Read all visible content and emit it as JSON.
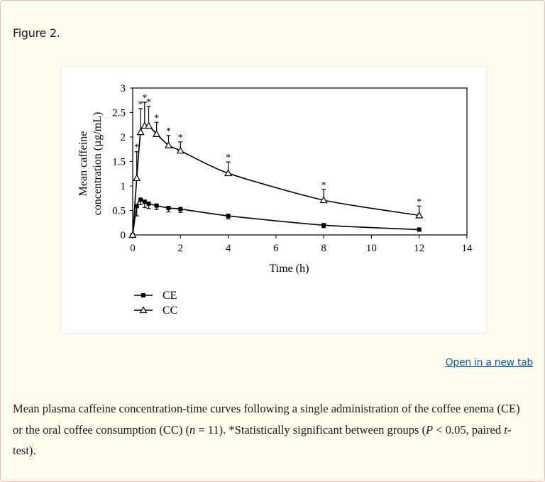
{
  "figure": {
    "label": "Figure 2.",
    "open_link": "Open in a new tab",
    "caption": {
      "part1": "Mean plasma caffeine concentration-time curves following a single administration of the coffee enema (CE) or the oral coffee consumption (CC) (",
      "n_symbol": "n",
      "part2": " = 11). *Statistically significant between groups (",
      "p_symbol": "P",
      "part3": " < 0.05, paired ",
      "t_symbol": "t",
      "part4": "-test)."
    }
  },
  "colors": {
    "card_bg": "#fffcef",
    "card_border": "#e8bfae",
    "link": "#0b5ea8",
    "plot_ink": "#000000"
  },
  "chart_data": {
    "type": "line",
    "title": "",
    "xlabel": "Time (h)",
    "ylabel_line1": "Mean caffeine",
    "ylabel_line2": "concentration (µg/mL)",
    "xlim": [
      0,
      14
    ],
    "ylim": [
      0,
      3
    ],
    "xticks": [
      0,
      2,
      4,
      6,
      8,
      10,
      12,
      14
    ],
    "yticks": [
      0,
      0.5,
      1,
      1.5,
      2,
      2.5,
      3
    ],
    "ytick_labels": [
      "0",
      "0.5",
      "1",
      "1.5",
      "2",
      "2.5",
      "3"
    ],
    "grid": false,
    "legend_position": "below-left",
    "x": [
      0,
      0.17,
      0.33,
      0.5,
      0.67,
      1,
      1.5,
      2,
      4,
      8,
      12
    ],
    "series": [
      {
        "name": "CE",
        "marker": "filled-square",
        "values": [
          0,
          0.59,
          0.72,
          0.68,
          0.64,
          0.6,
          0.55,
          0.53,
          0.39,
          0.2,
          0.11
        ],
        "error": [
          0,
          0.2,
          0.1,
          0.12,
          0.1,
          0.08,
          0.08,
          0.07,
          0.06,
          0.05,
          0.03
        ],
        "significant": [
          false,
          false,
          false,
          false,
          false,
          false,
          false,
          false,
          false,
          false,
          false
        ]
      },
      {
        "name": "CC",
        "marker": "open-triangle",
        "values": [
          0,
          1.16,
          2.1,
          2.23,
          2.23,
          2.06,
          1.83,
          1.72,
          1.26,
          0.71,
          0.4
        ],
        "error": [
          0,
          0.54,
          0.48,
          0.48,
          0.39,
          0.24,
          0.2,
          0.18,
          0.23,
          0.22,
          0.19
        ],
        "significant": [
          false,
          true,
          true,
          true,
          true,
          true,
          true,
          true,
          true,
          true,
          true
        ]
      }
    ],
    "annotation": "* = P < 0.05"
  }
}
